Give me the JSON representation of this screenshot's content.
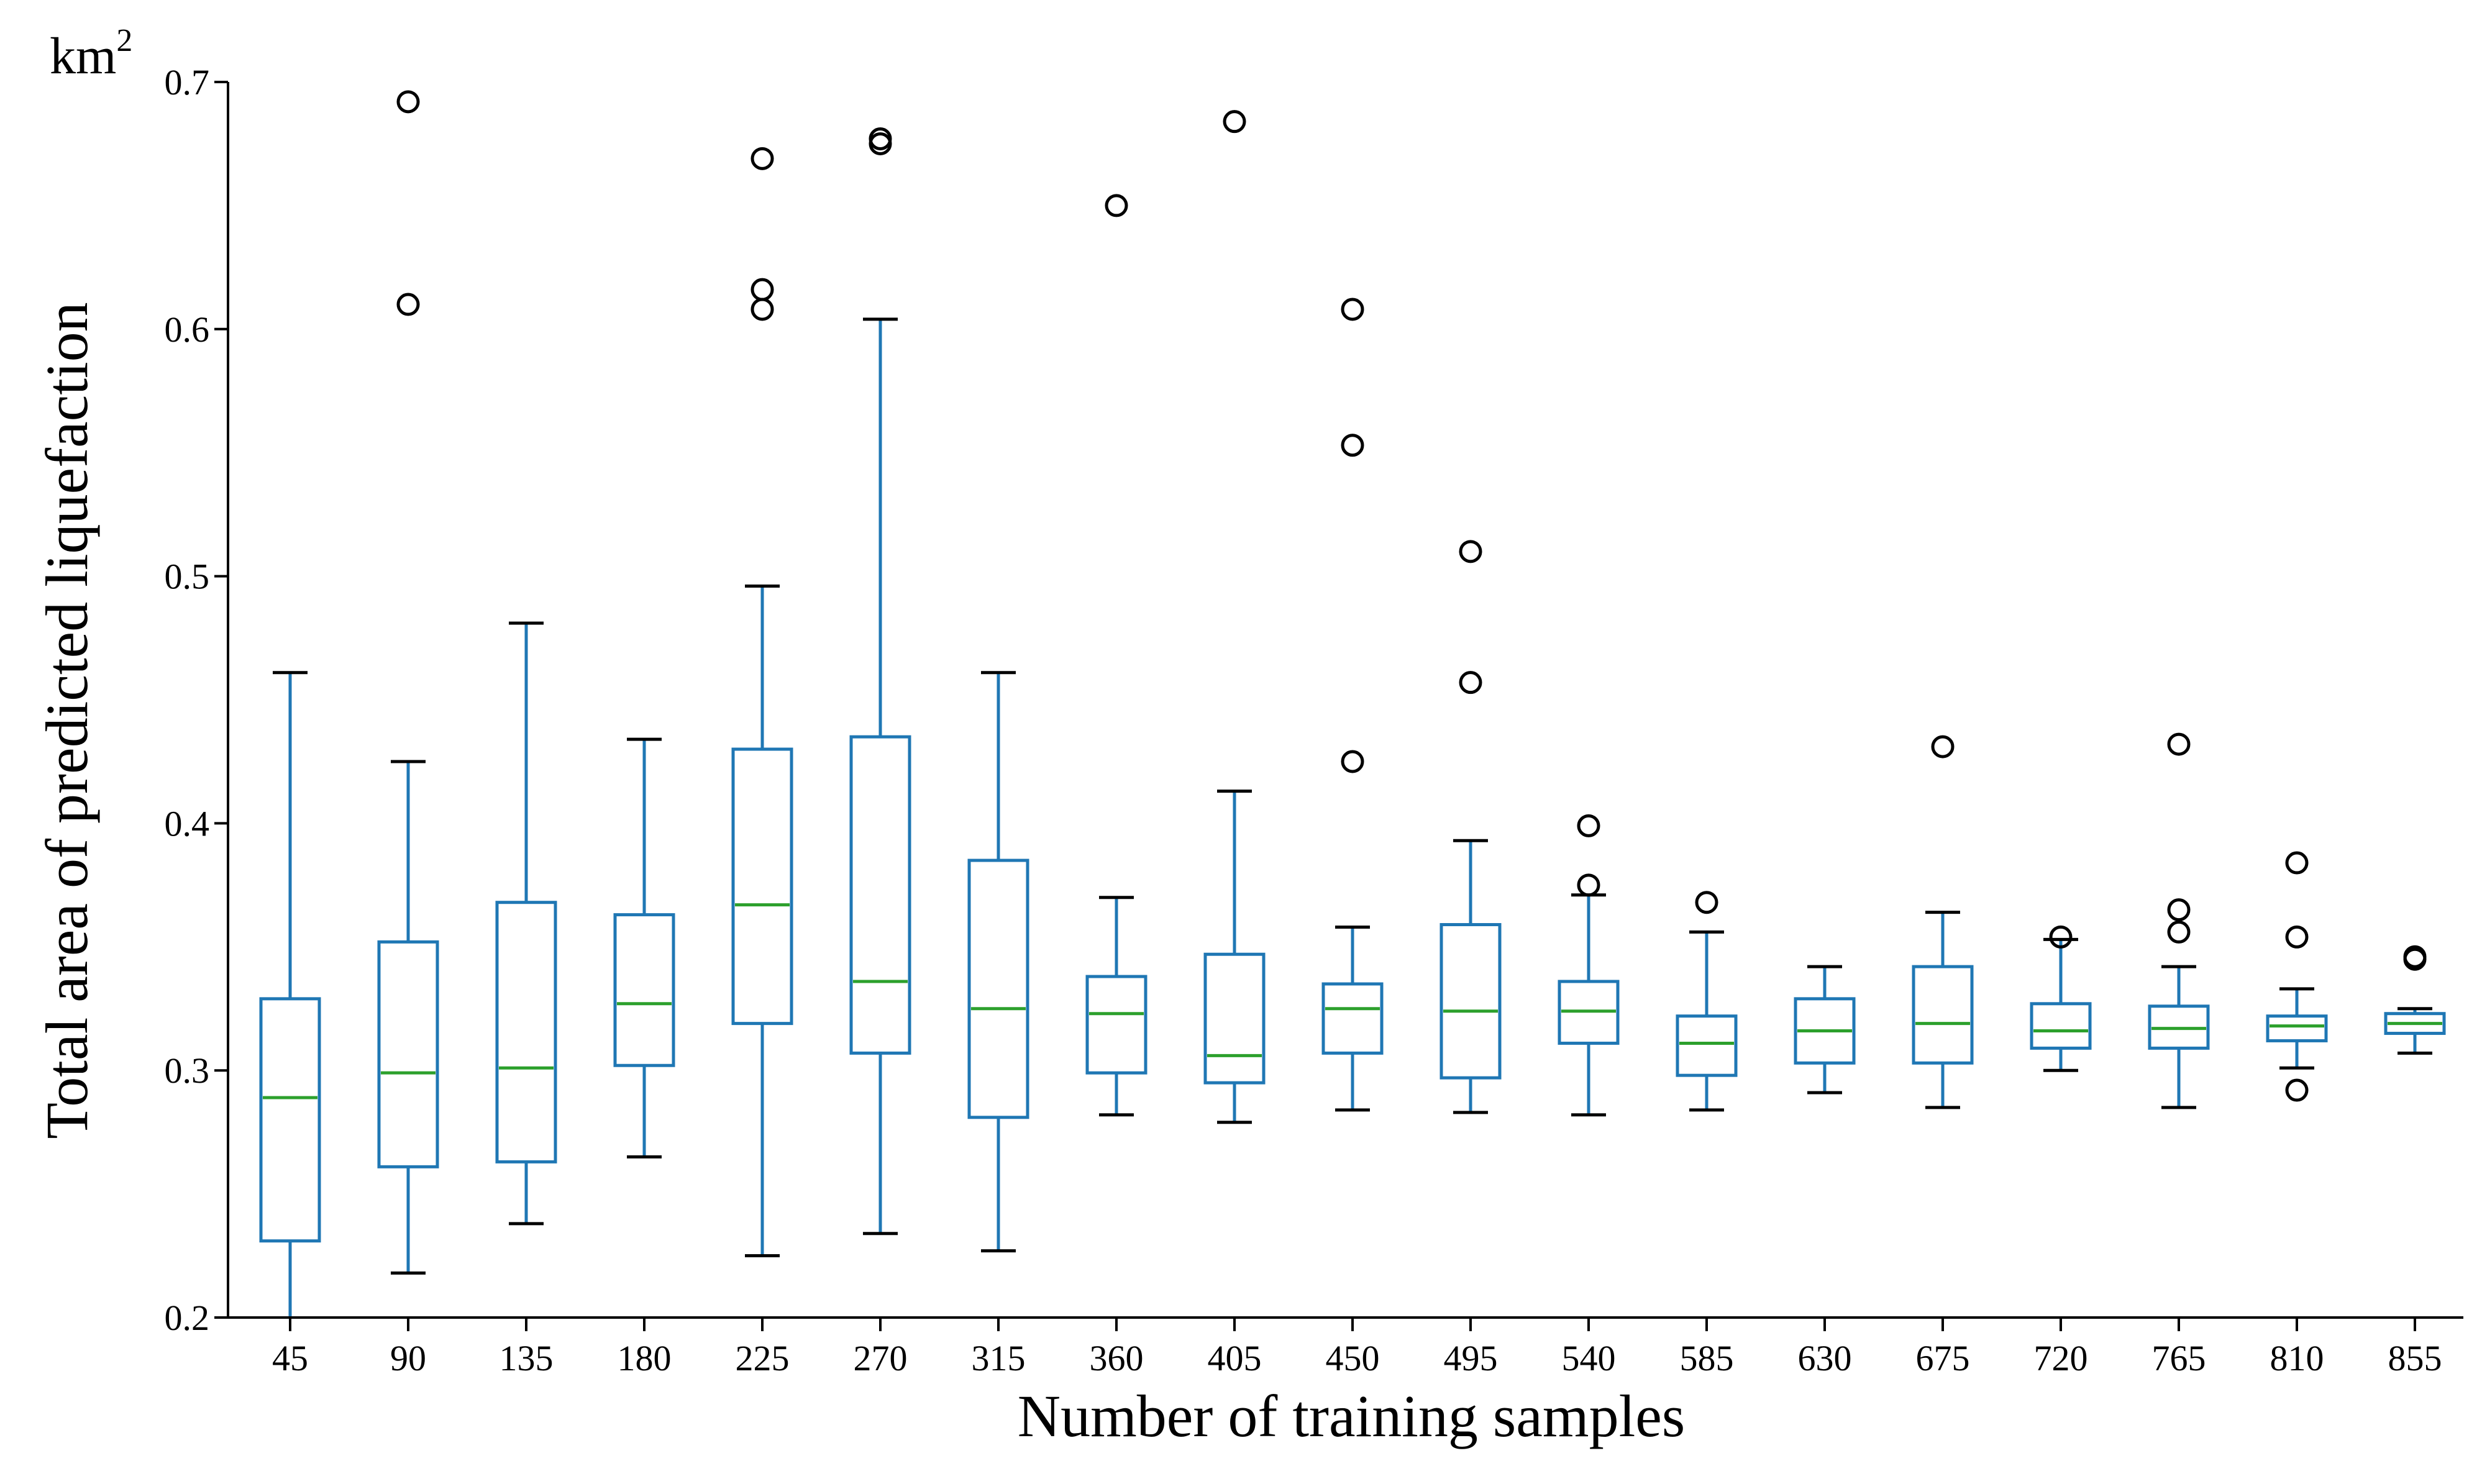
{
  "chart_data": {
    "type": "box",
    "title": "",
    "xlabel": "Number of training samples",
    "ylabel": "Total area of predicted liquefaction",
    "unit": {
      "base": "km",
      "exponent": "2"
    },
    "ylim": [
      0.2,
      0.7
    ],
    "yticks": [
      0.2,
      0.3,
      0.4,
      0.5,
      0.6,
      0.7
    ],
    "ytick_labels": [
      "0.2",
      "0.3",
      "0.4",
      "0.5",
      "0.6",
      "0.7"
    ],
    "categories": [
      "45",
      "90",
      "135",
      "180",
      "225",
      "270",
      "315",
      "360",
      "405",
      "450",
      "495",
      "540",
      "585",
      "630",
      "675",
      "720",
      "765",
      "810",
      "855"
    ],
    "boxes": [
      {
        "label": "45",
        "whislo": 0.2,
        "q1": 0.231,
        "med": 0.289,
        "q3": 0.329,
        "whishi": 0.461,
        "fliers": []
      },
      {
        "label": "90",
        "whislo": 0.218,
        "q1": 0.261,
        "med": 0.299,
        "q3": 0.352,
        "whishi": 0.425,
        "fliers": [
          0.61,
          0.692
        ]
      },
      {
        "label": "135",
        "whislo": 0.238,
        "q1": 0.263,
        "med": 0.301,
        "q3": 0.368,
        "whishi": 0.481,
        "fliers": []
      },
      {
        "label": "180",
        "whislo": 0.265,
        "q1": 0.302,
        "med": 0.327,
        "q3": 0.363,
        "whishi": 0.434,
        "fliers": []
      },
      {
        "label": "225",
        "whislo": 0.225,
        "q1": 0.319,
        "med": 0.367,
        "q3": 0.43,
        "whishi": 0.496,
        "fliers": [
          0.608,
          0.616,
          0.669
        ]
      },
      {
        "label": "270",
        "whislo": 0.234,
        "q1": 0.307,
        "med": 0.336,
        "q3": 0.435,
        "whishi": 0.604,
        "fliers": [
          0.675,
          0.677
        ]
      },
      {
        "label": "315",
        "whislo": 0.227,
        "q1": 0.281,
        "med": 0.325,
        "q3": 0.385,
        "whishi": 0.461,
        "fliers": []
      },
      {
        "label": "360",
        "whislo": 0.282,
        "q1": 0.299,
        "med": 0.323,
        "q3": 0.338,
        "whishi": 0.37,
        "fliers": [
          0.65
        ]
      },
      {
        "label": "405",
        "whislo": 0.279,
        "q1": 0.295,
        "med": 0.306,
        "q3": 0.347,
        "whishi": 0.413,
        "fliers": [
          0.684
        ]
      },
      {
        "label": "450",
        "whislo": 0.284,
        "q1": 0.307,
        "med": 0.325,
        "q3": 0.335,
        "whishi": 0.358,
        "fliers": [
          0.425,
          0.553,
          0.608
        ]
      },
      {
        "label": "495",
        "whislo": 0.283,
        "q1": 0.297,
        "med": 0.324,
        "q3": 0.359,
        "whishi": 0.393,
        "fliers": [
          0.457,
          0.51
        ]
      },
      {
        "label": "540",
        "whislo": 0.282,
        "q1": 0.311,
        "med": 0.324,
        "q3": 0.336,
        "whishi": 0.371,
        "fliers": [
          0.375,
          0.399
        ]
      },
      {
        "label": "585",
        "whislo": 0.284,
        "q1": 0.298,
        "med": 0.311,
        "q3": 0.322,
        "whishi": 0.356,
        "fliers": [
          0.368
        ]
      },
      {
        "label": "630",
        "whislo": 0.291,
        "q1": 0.303,
        "med": 0.316,
        "q3": 0.329,
        "whishi": 0.342,
        "fliers": []
      },
      {
        "label": "675",
        "whislo": 0.285,
        "q1": 0.303,
        "med": 0.319,
        "q3": 0.342,
        "whishi": 0.364,
        "fliers": [
          0.431
        ]
      },
      {
        "label": "720",
        "whislo": 0.3,
        "q1": 0.309,
        "med": 0.316,
        "q3": 0.327,
        "whishi": 0.353,
        "fliers": [
          0.354
        ]
      },
      {
        "label": "765",
        "whislo": 0.285,
        "q1": 0.309,
        "med": 0.317,
        "q3": 0.326,
        "whishi": 0.342,
        "fliers": [
          0.356,
          0.365,
          0.432
        ]
      },
      {
        "label": "810",
        "whislo": 0.301,
        "q1": 0.312,
        "med": 0.318,
        "q3": 0.322,
        "whishi": 0.333,
        "fliers": [
          0.292,
          0.354,
          0.384
        ]
      },
      {
        "label": "855",
        "whislo": 0.307,
        "q1": 0.315,
        "med": 0.319,
        "q3": 0.323,
        "whishi": 0.325,
        "fliers": [
          0.345,
          0.346
        ]
      }
    ],
    "colors": {
      "box": "#1f77b4",
      "median": "#2ca02c",
      "whisker_cap": "#000000",
      "flier": "#000000",
      "axis": "#000000"
    }
  }
}
